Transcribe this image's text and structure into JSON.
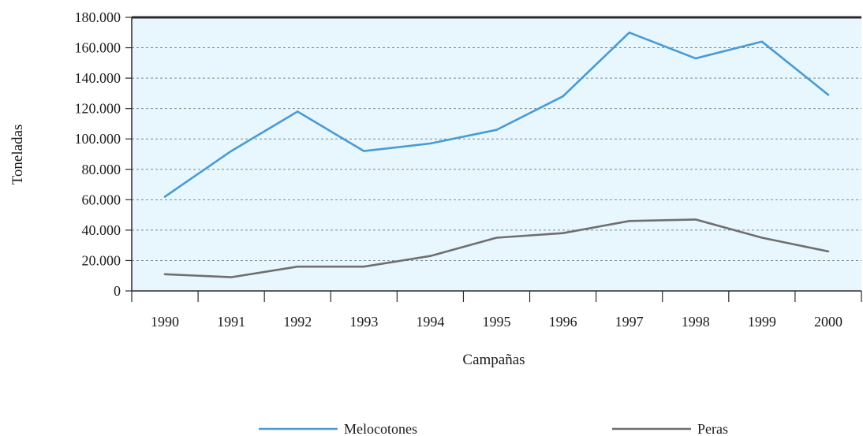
{
  "chart_data": {
    "type": "line",
    "xlabel": "Campañas",
    "ylabel": "Toneladas",
    "categories": [
      "1990",
      "1991",
      "1992",
      "1993",
      "1994",
      "1995",
      "1996",
      "1997",
      "1998",
      "1999",
      "2000"
    ],
    "ylim": [
      0,
      180000
    ],
    "yticks": [
      0,
      20000,
      40000,
      60000,
      80000,
      100000,
      120000,
      140000,
      160000,
      180000
    ],
    "ytick_labels": [
      "0",
      "20.000",
      "40.000",
      "60.000",
      "80.000",
      "100.000",
      "120.000",
      "140.000",
      "160.000",
      "180.000"
    ],
    "grid": true,
    "legend_position": "bottom",
    "series": [
      {
        "name": "Melocotones",
        "color": "#4a9ad4",
        "values": [
          62000,
          92000,
          118000,
          92000,
          97000,
          106000,
          128000,
          170000,
          153000,
          164000,
          129000
        ]
      },
      {
        "name": "Peras",
        "color": "#6f6f6f",
        "values": [
          11000,
          9000,
          16000,
          16000,
          23000,
          35000,
          38000,
          46000,
          47000,
          35000,
          26000
        ]
      }
    ]
  },
  "colors": {
    "plot_background": "#e8f7fd",
    "gridline": "#7a8a95",
    "axis": "#2a2a2a"
  }
}
